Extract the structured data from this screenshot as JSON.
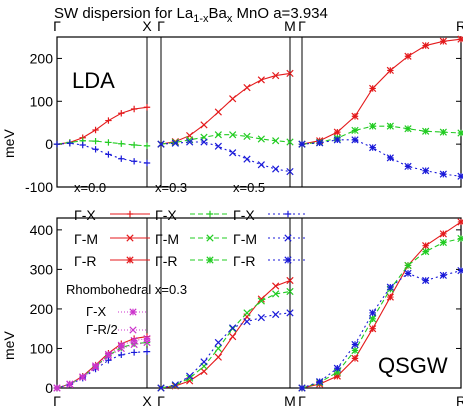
{
  "chart_data": {
    "type": "line",
    "title": "SW dispersion for La",
    "title_sub": "1-x",
    "title_mid": "Ba",
    "title_sub2": "x",
    "title_end": "MnO   a=3.934",
    "ylabel": "meV",
    "colors": {
      "x0": "#e41a1c",
      "x03": "#22cc22",
      "x05": "#1a1ad9",
      "rh_x": "#cc33cc",
      "rh_r": "#cc33cc"
    },
    "legend": {
      "x0_title": "x=0.0",
      "x03_title": "x=0.3",
      "x05_title": "x=0.5",
      "gx": "Γ-X",
      "gm": "Γ-M",
      "gr": "Γ-R",
      "rh_title": "Rhombohedral x=0.3",
      "rh_gx": "Γ-X",
      "rh_gr2": "Γ-R/2"
    },
    "panels": [
      {
        "method": "LDA",
        "ylim": [
          -100,
          250
        ],
        "yticks": [
          -100,
          0,
          100,
          200
        ],
        "segments": [
          {
            "start": "Γ",
            "end": "X",
            "series": [
              {
                "key": "x0",
                "marker": "plus",
                "values": [
                  0,
                  4,
                  15,
                  33,
                  55,
                  72,
                  82,
                  86
                ]
              },
              {
                "key": "x03",
                "marker": "plus",
                "values": [
                  0,
                  4,
                  8,
                  7,
                  4,
                  1,
                  -2,
                  -4
                ]
              },
              {
                "key": "x05",
                "marker": "plus",
                "values": [
                  0,
                  2,
                  -2,
                  -12,
                  -24,
                  -34,
                  -40,
                  -44
                ]
              }
            ]
          },
          {
            "start": "Γ",
            "end": "M",
            "series": [
              {
                "key": "x0",
                "marker": "x",
                "values": [
                  0,
                  6,
                  20,
                  45,
                  75,
                  106,
                  132,
                  150,
                  160,
                  165
                ]
              },
              {
                "key": "x03",
                "marker": "x",
                "values": [
                  0,
                  4,
                  10,
                  16,
                  22,
                  22,
                  18,
                  12,
                  8,
                  5
                ]
              },
              {
                "key": "x05",
                "marker": "x",
                "values": [
                  0,
                  2,
                  5,
                  5,
                  -5,
                  -20,
                  -35,
                  -48,
                  -58,
                  -64
                ]
              }
            ]
          },
          {
            "start": "Γ",
            "end": "R",
            "series": [
              {
                "key": "x0",
                "marker": "star",
                "values": [
                  0,
                  8,
                  28,
                  65,
                  130,
                  172,
                  205,
                  230,
                  240,
                  245
                ]
              },
              {
                "key": "x03",
                "marker": "star",
                "values": [
                  0,
                  4,
                  14,
                  32,
                  42,
                  42,
                  36,
                  30,
                  28,
                  26
                ]
              },
              {
                "key": "x05",
                "marker": "star",
                "values": [
                  0,
                  3,
                  10,
                  10,
                  -8,
                  -32,
                  -52,
                  -62,
                  -70,
                  -75
                ]
              }
            ]
          }
        ]
      },
      {
        "method": "QSGW",
        "ylim": [
          0,
          430
        ],
        "yticks": [
          0,
          100,
          200,
          300,
          400
        ],
        "segments": [
          {
            "start": "Γ",
            "end": "X",
            "series": [
              {
                "key": "x0",
                "marker": "plus",
                "values": [
                  0,
                  10,
                  30,
                  58,
                  88,
                  112,
                  125,
                  130
                ]
              },
              {
                "key": "x03",
                "marker": "plus",
                "values": [
                  0,
                  10,
                  28,
                  55,
                  82,
                  102,
                  112,
                  115
                ]
              },
              {
                "key": "x05",
                "marker": "plus",
                "values": [
                  0,
                  9,
                  25,
                  48,
                  70,
                  84,
                  90,
                  92
                ]
              },
              {
                "key": "rh_x",
                "marker": "star",
                "values": [
                  0,
                  10,
                  28,
                  56,
                  85,
                  108,
                  120,
                  125
                ]
              },
              {
                "key": "rh_r",
                "marker": "x",
                "values": [
                  0,
                  9,
                  27,
                  52,
                  80,
                  100,
                  110,
                  115
                ]
              }
            ]
          },
          {
            "start": "Γ",
            "end": "M",
            "series": [
              {
                "key": "x0",
                "marker": "x",
                "values": [
                  0,
                  5,
                  18,
                  42,
                  78,
                  130,
                  180,
                  225,
                  258,
                  272
                ]
              },
              {
                "key": "x03",
                "marker": "x",
                "values": [
                  0,
                  7,
                  25,
                  55,
                  100,
                  150,
                  190,
                  220,
                  238,
                  244
                ]
              },
              {
                "key": "x05",
                "marker": "x",
                "values": [
                  0,
                  8,
                  30,
                  66,
                  115,
                  152,
                  168,
                  178,
                  186,
                  190
                ]
              }
            ]
          },
          {
            "start": "Γ",
            "end": "R",
            "series": [
              {
                "key": "x0",
                "marker": "star",
                "values": [
                  0,
                  10,
                  30,
                  75,
                  150,
                  230,
                  310,
                  360,
                  390,
                  420
                ]
              },
              {
                "key": "x03",
                "marker": "star",
                "values": [
                  0,
                  14,
                  40,
                  95,
                  175,
                  250,
                  310,
                  345,
                  368,
                  378
                ]
              },
              {
                "key": "x05",
                "marker": "star",
                "values": [
                  0,
                  16,
                  50,
                  110,
                  190,
                  255,
                  290,
                  272,
                  285,
                  297
                ]
              }
            ]
          }
        ]
      }
    ]
  }
}
